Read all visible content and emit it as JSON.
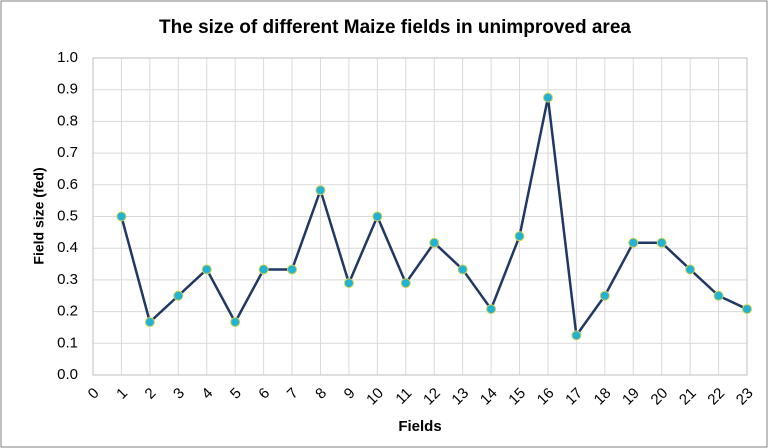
{
  "chart_data": {
    "type": "line",
    "title": "The size of different Maize fields in unimproved area",
    "x_label": "Fields",
    "y_label": "Field size (fed)",
    "x": [
      1,
      2,
      3,
      4,
      5,
      6,
      7,
      8,
      9,
      10,
      11,
      12,
      13,
      14,
      15,
      16,
      17,
      18,
      19,
      20,
      21,
      22,
      23
    ],
    "series": [
      {
        "name": "Field size",
        "color": "#1f3864",
        "marker_color": "#21b3d6",
        "values": [
          0.5,
          0.167,
          0.25,
          0.333,
          0.167,
          0.333,
          0.333,
          0.583,
          0.29,
          0.5,
          0.29,
          0.417,
          0.333,
          0.208,
          0.438,
          0.875,
          0.125,
          0.25,
          0.417,
          0.417,
          0.333,
          0.25,
          0.208
        ]
      }
    ],
    "xlim": [
      0,
      23
    ],
    "xticks": [
      0,
      1,
      2,
      3,
      4,
      5,
      6,
      7,
      8,
      9,
      10,
      11,
      12,
      13,
      14,
      15,
      16,
      17,
      18,
      19,
      20,
      21,
      22,
      23
    ],
    "ylim": [
      0,
      1
    ],
    "yticks": [
      {
        "value": 0,
        "label": "0.0"
      },
      0.1,
      0.2,
      0.3,
      0.4,
      0.5,
      0.6,
      0.7,
      0.8,
      0.9,
      {
        "value": 1,
        "label": "1.0"
      }
    ],
    "grid": true
  }
}
